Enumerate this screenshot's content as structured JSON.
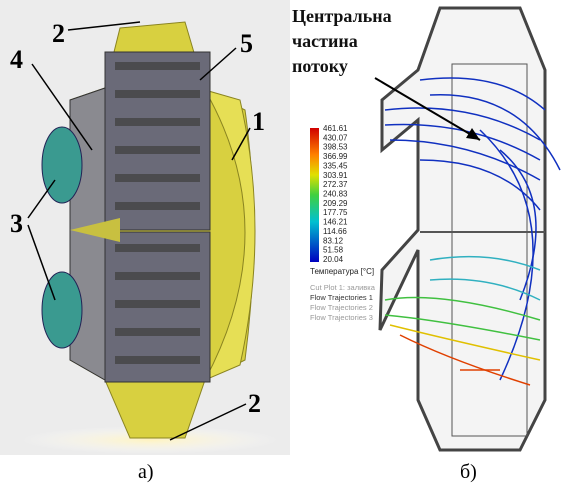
{
  "figure_a": {
    "labels": [
      "1",
      "2",
      "2",
      "3",
      "4",
      "5"
    ],
    "caption": "а)"
  },
  "figure_b": {
    "title_lines": [
      "Центральна",
      "частина",
      "потоку"
    ],
    "legend": {
      "values": [
        461.61,
        430.07,
        398.53,
        366.99,
        335.45,
        303.91,
        272.37,
        240.83,
        209.29,
        177.75,
        146.21,
        114.66,
        83.12,
        51.58,
        20.04
      ],
      "unit": "Температура [°C]",
      "items": [
        "Cut Plot 1: заливка",
        "Flow Trajectories 1",
        "Flow Trajectories 2",
        "Flow Trajectories 3"
      ]
    },
    "caption": "б)"
  }
}
